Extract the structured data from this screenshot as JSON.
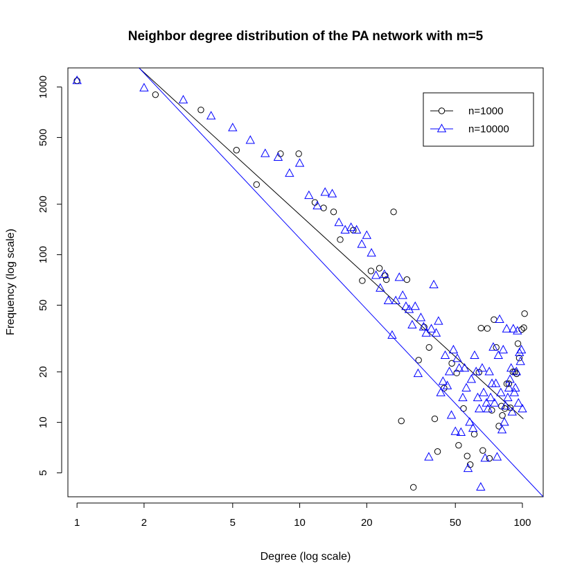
{
  "chart_data": {
    "type": "scatter",
    "title": "Neighbor degree distribution of the PA network with m=5",
    "xlabel": "Degree (log scale)",
    "ylabel": "Frequency (log scale)",
    "x_scale": "log",
    "y_scale": "log",
    "xlim": [
      0.91,
      124
    ],
    "ylim": [
      3.6,
      1300
    ],
    "x_ticks": [
      1,
      2,
      5,
      10,
      20,
      50,
      100
    ],
    "x_tick_labels": [
      "1",
      "2",
      "5",
      "10",
      "20",
      "50",
      "100"
    ],
    "y_ticks": [
      5,
      10,
      20,
      50,
      100,
      200,
      500,
      1000
    ],
    "y_tick_labels": [
      "5",
      "10",
      "20",
      "50",
      "100",
      "200",
      "500",
      "1000"
    ],
    "legend": {
      "position": "top-right",
      "entries": [
        {
          "label": "n=1000",
          "marker": "circle",
          "color": "#000000"
        },
        {
          "label": "n=10000",
          "marker": "triangle",
          "color": "#0000ff"
        }
      ]
    },
    "series": [
      {
        "name": "n=1000",
        "marker": "circle",
        "color": "#000000",
        "fit_line": {
          "x": [
            0.91,
            101
          ],
          "y": [
            3170,
            10.5
          ]
        },
        "points": [
          [
            1,
            1090
          ],
          [
            2.25,
            900
          ],
          [
            3.6,
            730
          ],
          [
            5.2,
            420
          ],
          [
            6.4,
            262
          ],
          [
            8.2,
            400
          ],
          [
            9.9,
            400
          ],
          [
            11.7,
            205
          ],
          [
            12.8,
            190
          ],
          [
            14.2,
            180
          ],
          [
            15.2,
            123
          ],
          [
            17.4,
            140
          ],
          [
            19.1,
            70
          ],
          [
            20.9,
            80
          ],
          [
            22.8,
            83
          ],
          [
            24.2,
            75
          ],
          [
            24.5,
            71
          ],
          [
            26.4,
            180
          ],
          [
            28.6,
            10.2
          ],
          [
            30.3,
            71
          ],
          [
            32.4,
            4.1
          ],
          [
            34.2,
            23.5
          ],
          [
            36.2,
            37
          ],
          [
            38.1,
            28
          ],
          [
            40.4,
            10.5
          ],
          [
            41.6,
            6.7
          ],
          [
            44.5,
            16
          ],
          [
            48.2,
            22.5
          ],
          [
            50.7,
            19.7
          ],
          [
            51.7,
            7.3
          ],
          [
            54.4,
            12.1
          ],
          [
            56.5,
            6.3
          ],
          [
            58.3,
            5.6
          ],
          [
            60.8,
            8.5
          ],
          [
            63.8,
            19.9
          ],
          [
            65.2,
            36.5
          ],
          [
            66.4,
            6.8
          ],
          [
            69.6,
            36.3
          ],
          [
            71.1,
            6.1
          ],
          [
            72.9,
            11.8
          ],
          [
            74.5,
            41
          ],
          [
            76.3,
            28
          ],
          [
            78.4,
            9.5
          ],
          [
            80.5,
            12.5
          ],
          [
            81.3,
            11
          ],
          [
            83.4,
            12.1
          ],
          [
            85.1,
            17
          ],
          [
            86.9,
            17
          ],
          [
            88.4,
            12.2
          ],
          [
            90.7,
            20
          ],
          [
            92.4,
            20
          ],
          [
            94.2,
            19.5
          ],
          [
            95.5,
            29.5
          ],
          [
            96.8,
            24.2
          ],
          [
            99.3,
            35.8
          ],
          [
            101.5,
            36.7
          ],
          [
            102.3,
            44.5
          ]
        ]
      },
      {
        "name": "n=10000",
        "marker": "triangle",
        "color": "#0000ff",
        "fit_line": {
          "x": [
            1.9,
            124
          ],
          "y": [
            1300,
            3.6
          ]
        },
        "points": [
          [
            1,
            1090
          ],
          [
            2,
            985
          ],
          [
            3,
            835
          ],
          [
            4,
            670
          ],
          [
            5,
            570
          ],
          [
            6,
            480
          ],
          [
            7,
            400
          ],
          [
            8,
            380
          ],
          [
            9,
            305
          ],
          [
            10,
            350
          ],
          [
            11,
            225
          ],
          [
            12,
            195
          ],
          [
            13,
            235
          ],
          [
            14,
            230
          ],
          [
            15,
            155
          ],
          [
            16,
            140
          ],
          [
            17,
            145
          ],
          [
            18,
            140
          ],
          [
            19,
            115
          ],
          [
            20,
            130
          ],
          [
            21,
            102
          ],
          [
            22,
            75
          ],
          [
            23,
            63
          ],
          [
            24,
            76
          ],
          [
            25,
            53
          ],
          [
            26,
            33
          ],
          [
            27,
            53
          ],
          [
            28,
            73
          ],
          [
            29,
            57
          ],
          [
            30,
            49
          ],
          [
            31,
            47
          ],
          [
            32,
            38
          ],
          [
            33,
            49
          ],
          [
            34,
            19.5
          ],
          [
            35,
            42
          ],
          [
            36,
            37
          ],
          [
            37,
            34
          ],
          [
            38,
            6.2
          ],
          [
            39,
            36
          ],
          [
            40,
            66
          ],
          [
            41,
            34
          ],
          [
            42,
            40
          ],
          [
            43,
            15
          ],
          [
            44,
            17.5
          ],
          [
            45,
            25
          ],
          [
            46,
            16.5
          ],
          [
            47,
            20
          ],
          [
            48,
            11
          ],
          [
            49,
            27
          ],
          [
            50,
            8.8
          ],
          [
            51,
            24
          ],
          [
            52,
            21
          ],
          [
            53,
            8.7
          ],
          [
            54,
            14
          ],
          [
            55,
            21
          ],
          [
            56,
            16
          ],
          [
            57,
            5.3
          ],
          [
            58,
            10
          ],
          [
            59,
            18
          ],
          [
            60,
            9.2
          ],
          [
            61,
            25
          ],
          [
            62,
            20
          ],
          [
            63,
            14
          ],
          [
            64,
            12
          ],
          [
            65,
            4.1
          ],
          [
            66,
            21
          ],
          [
            67,
            15
          ],
          [
            68,
            6.1
          ],
          [
            69,
            13
          ],
          [
            70,
            12
          ],
          [
            71,
            20
          ],
          [
            72,
            14
          ],
          [
            73,
            17
          ],
          [
            74,
            28
          ],
          [
            75,
            13
          ],
          [
            76,
            17
          ],
          [
            77,
            6.2
          ],
          [
            78,
            25
          ],
          [
            79,
            41
          ],
          [
            80,
            15
          ],
          [
            81,
            9
          ],
          [
            82,
            27
          ],
          [
            83,
            10
          ],
          [
            84,
            12.5
          ],
          [
            85,
            36
          ],
          [
            86,
            14
          ],
          [
            87,
            16
          ],
          [
            88,
            18
          ],
          [
            89,
            21
          ],
          [
            90,
            11.5
          ],
          [
            91,
            36
          ],
          [
            92,
            15
          ],
          [
            93,
            16
          ],
          [
            94,
            20
          ],
          [
            95,
            35
          ],
          [
            96,
            13
          ],
          [
            97,
            26
          ],
          [
            98,
            23
          ],
          [
            99,
            27
          ],
          [
            100,
            12
          ]
        ]
      }
    ]
  }
}
